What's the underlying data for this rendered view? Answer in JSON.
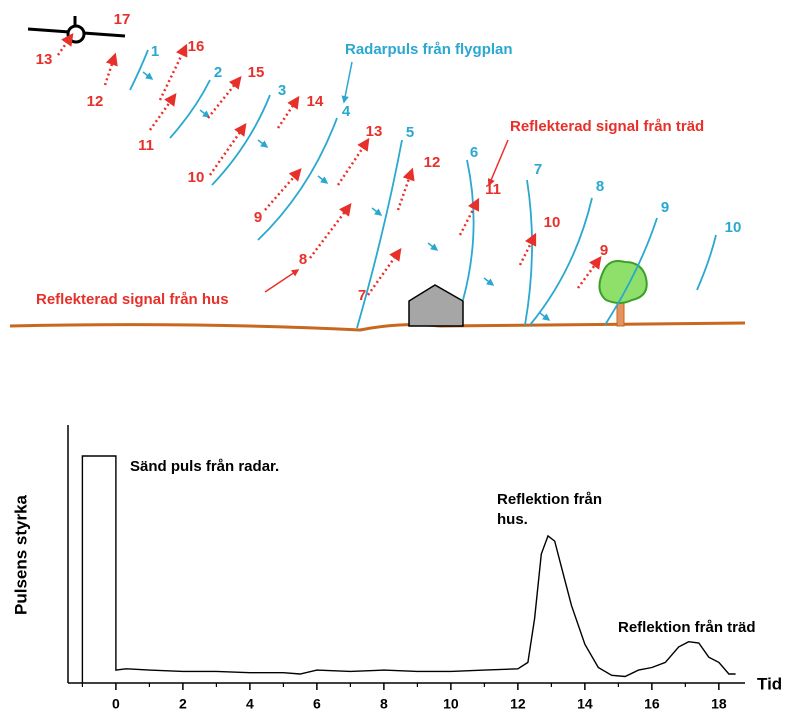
{
  "diagram": {
    "pulse_label": "Radarpuls från flygplan",
    "tree_reflection_label": "Reflekterad signal från träd",
    "house_reflection_label": "Reflekterad signal från hus",
    "pulse_numbers": [
      "1",
      "2",
      "3",
      "4",
      "5",
      "6",
      "7",
      "8",
      "9",
      "10"
    ],
    "reflection_numbers": [
      "17",
      "13",
      "16",
      "12",
      "15",
      "11",
      "14",
      "10",
      "13",
      "9",
      "12",
      "8",
      "11",
      "7",
      "10",
      "9"
    ]
  },
  "chart_data": {
    "type": "line",
    "ylabel": "Pulsens styrka",
    "xlabel": "Tid",
    "annotations": [
      "Sänd puls från radar.",
      "Reflektion från",
      "hus.",
      "Reflektion från träd"
    ],
    "x": [
      -1,
      -1,
      0,
      0,
      0.3,
      1,
      2,
      3,
      4,
      5,
      5.5,
      6,
      7,
      8,
      9,
      10,
      11,
      12,
      12.3,
      12.5,
      12.7,
      12.9,
      13.1,
      13.3,
      13.6,
      14,
      14.4,
      14.8,
      15.2,
      15.6,
      16,
      16.4,
      16.8,
      17.1,
      17.4,
      17.7,
      18,
      18.3,
      18.5
    ],
    "values": [
      0,
      88,
      88,
      5,
      5.5,
      5,
      4.5,
      4.5,
      4,
      4,
      3.5,
      5,
      4.5,
      5,
      4.5,
      4.5,
      5,
      5.5,
      8,
      25,
      50,
      57,
      55,
      45,
      30,
      15,
      6,
      3,
      2.5,
      5,
      6,
      8,
      14,
      16,
      15.5,
      10,
      8,
      3.5,
      3.5
    ],
    "color": "#000000",
    "xlim": [
      -1.43,
      18.9
    ],
    "ylim": [
      0,
      100
    ],
    "xticks": [
      0,
      2,
      4,
      6,
      8,
      10,
      12,
      14,
      16,
      18
    ],
    "xminorticks": [
      -1,
      1,
      3,
      5,
      7,
      9,
      11,
      13,
      15,
      17
    ]
  }
}
